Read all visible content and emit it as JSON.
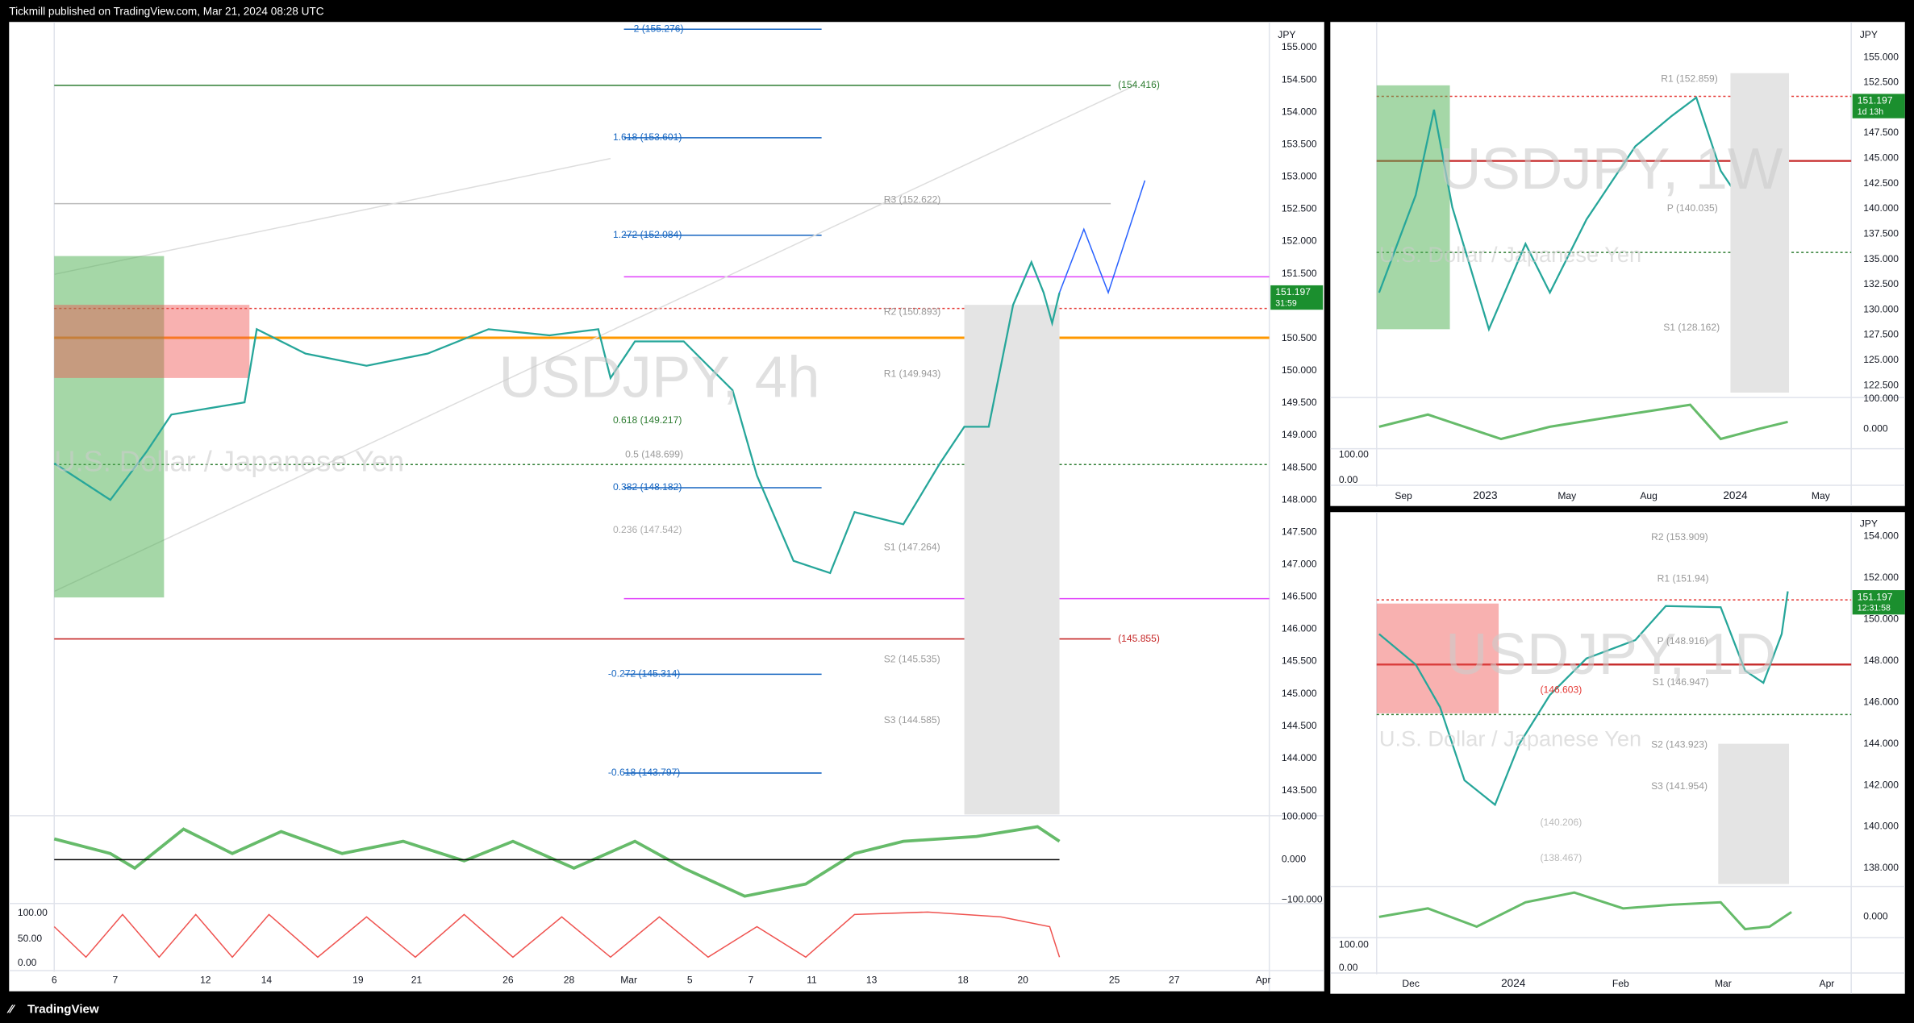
{
  "header": {
    "title": "Tickmill published on TradingView.com, Mar 21, 2024 08:28 UTC"
  },
  "footer": {
    "brand": "TradingView"
  },
  "panels": [
    {
      "currency": "JPY",
      "watermark": "USDJPY, 4h",
      "subtitle": "U.S. Dollar / Japanese Yen",
      "price_labels": [
        "155.000",
        "154.500",
        "154.000",
        "153.500",
        "153.000",
        "152.500",
        "152.000",
        "151.500",
        "151.000",
        "150.500",
        "150.000",
        "149.500",
        "149.000",
        "148.500",
        "148.000",
        "147.500",
        "147.000",
        "146.500",
        "146.000",
        "145.500",
        "145.000",
        "144.500",
        "144.000",
        "143.500"
      ],
      "badge": [
        "151.197",
        "31:59"
      ],
      "levels": [
        "2 (155.276)",
        "1.618 (153.601)",
        "1.272 (152.084)",
        "0.618 (149.217)",
        "0.5 (148.699)",
        "0.382 (148.182)",
        "0.236 (147.542)",
        "-0.272 (145.314)",
        "-0.618 (143.797)",
        "(154.416)",
        "(145.855)",
        "R3 (152.622)",
        "R2 (150.893)",
        "R1 (149.943)",
        "S1 (147.264)",
        "S2 (145.535)",
        "S3 (144.585)"
      ],
      "oscillator_labels": [
        "100.000",
        "0.000",
        "−100.000"
      ],
      "stoch_labels": [
        "100.00",
        "50.00",
        "0.00"
      ],
      "dates": [
        "6",
        "7",
        "12",
        "14",
        "19",
        "21",
        "26",
        "28",
        "Mar",
        "5",
        "7",
        "11",
        "13",
        "18",
        "20",
        "25",
        "27",
        "Apr"
      ]
    },
    {
      "currency": "JPY",
      "watermark": "USDJPY, 1W",
      "subtitle": "U.S. Dollar / Japanese Yen",
      "price_labels": [
        "155.000",
        "152.500",
        "150.000",
        "147.500",
        "145.000",
        "142.500",
        "140.000",
        "137.500",
        "135.000",
        "132.500",
        "130.000",
        "127.500",
        "125.000",
        "122.500"
      ],
      "badge": [
        "151.197",
        "1d 13h"
      ],
      "levels": [
        "R1 (152.859)",
        "P (140.035)",
        "S1 (128.162)"
      ],
      "oscillator_labels": [
        "100.000",
        "0.000"
      ],
      "stoch_labels": [
        "100.00",
        "0.00"
      ],
      "dates": [
        "Sep",
        "2023",
        "May",
        "Aug",
        "2024",
        "May"
      ]
    },
    {
      "currency": "JPY",
      "watermark": "USDJPY, 1D",
      "subtitle": "U.S. Dollar / Japanese Yen",
      "price_labels": [
        "154.000",
        "152.000",
        "150.000",
        "148.000",
        "146.000",
        "144.000",
        "142.000",
        "140.000",
        "138.000"
      ],
      "badge": [
        "151.197",
        "12:31:58"
      ],
      "levels": [
        "R2 (153.909)",
        "R1 (151.94)",
        "P (148.916)",
        "S1 (146.947)",
        "(146.603)",
        "S2 (143.923)",
        "S3 (141.954)",
        "(140.206)",
        "(138.467)"
      ],
      "oscillator_labels": [
        "0.000"
      ],
      "stoch_labels": [
        "100.00",
        "0.00"
      ],
      "dates": [
        "Dec",
        "2024",
        "Feb",
        "Mar",
        "Apr"
      ]
    }
  ]
}
